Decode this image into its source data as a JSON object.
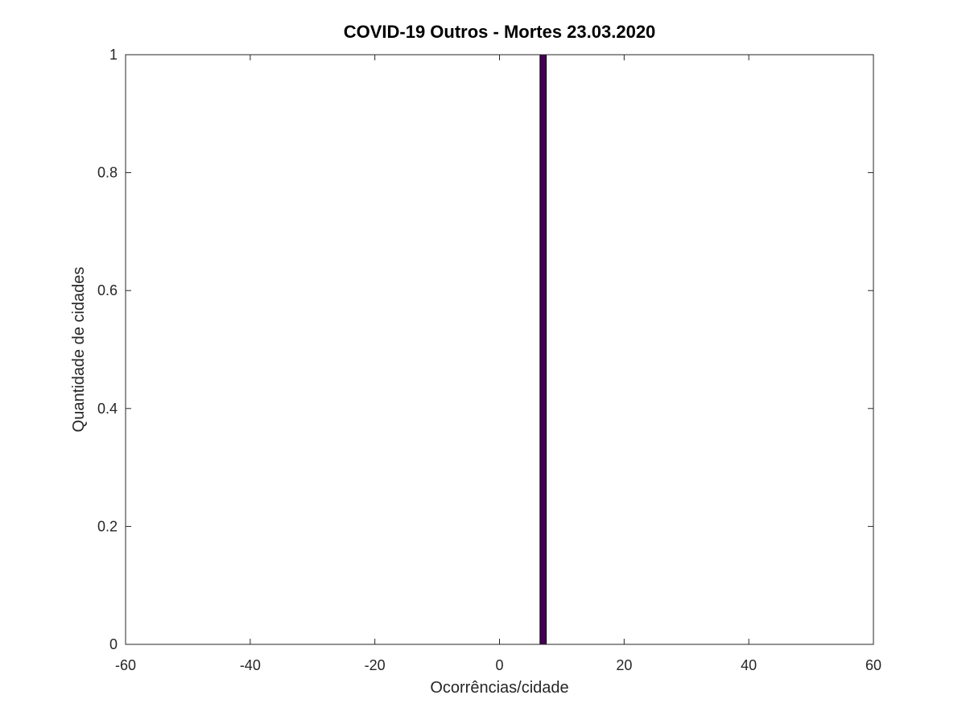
{
  "chart_data": {
    "type": "bar",
    "title": "COVID-19 Outros - Mortes 23.03.2020",
    "xlabel": "Ocorrências/cidade",
    "ylabel": "Quantidade de cidades",
    "xlim": [
      -60,
      60
    ],
    "ylim": [
      0,
      1
    ],
    "xticks": [
      -60,
      -40,
      -20,
      0,
      20,
      40,
      60
    ],
    "xtick_labels": [
      "-60",
      "-40",
      "-20",
      "0",
      "20",
      "40",
      "60"
    ],
    "yticks": [
      0,
      0.2,
      0.4,
      0.6,
      0.8,
      1
    ],
    "ytick_labels": [
      "0",
      "0.2",
      "0.4",
      "0.6",
      "0.8",
      "1"
    ],
    "grid": false,
    "bar_color": "#440154",
    "bars": [
      {
        "x": 7,
        "value": 1
      }
    ]
  }
}
